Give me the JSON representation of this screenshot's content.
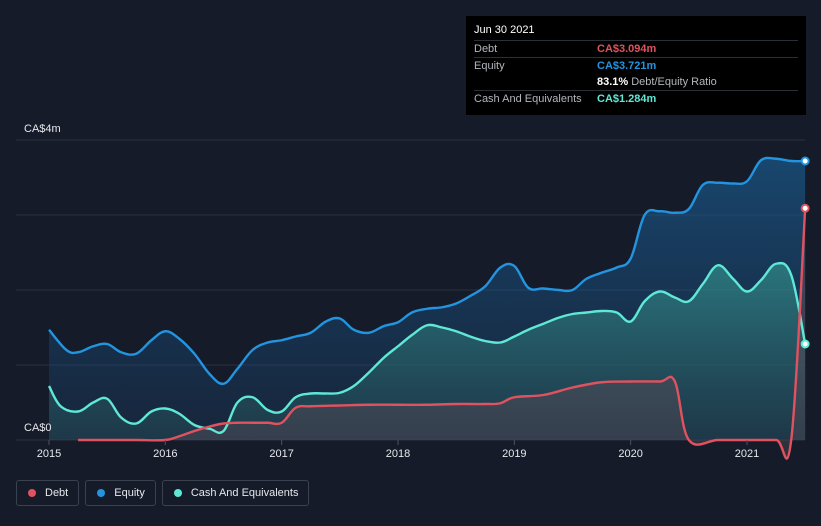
{
  "tooltip": {
    "date": "Jun 30 2021",
    "debt_label": "Debt",
    "debt_value": "CA$3.094m",
    "equity_label": "Equity",
    "equity_value": "CA$3.721m",
    "ratio_value": "83.1%",
    "ratio_label": "Debt/Equity Ratio",
    "cash_label": "Cash And Equivalents",
    "cash_value": "CA$1.284m"
  },
  "colors": {
    "debt": "#e0525f",
    "equity": "#2394df",
    "cash": "#5fe8d5",
    "background": "#151b28"
  },
  "legend": [
    {
      "name": "debt",
      "label": "Debt",
      "color": "#e0525f"
    },
    {
      "name": "equity",
      "label": "Equity",
      "color": "#2394df"
    },
    {
      "name": "cash",
      "label": "Cash And Equivalents",
      "color": "#5fe8d5"
    }
  ],
  "chart_data": {
    "type": "area",
    "ylim": [
      0,
      4
    ],
    "unit": "CA$m",
    "y_tick_labels": [
      "CA$4m",
      "CA$0"
    ],
    "x_tick_labels": [
      "2015",
      "2016",
      "2017",
      "2018",
      "2019",
      "2020",
      "2021"
    ],
    "xlim": [
      2015.0,
      2021.5
    ],
    "grid": true,
    "legend_position": "bottom-left",
    "series": [
      {
        "name": "Equity",
        "x": [
          2015.0,
          2015.15,
          2015.25,
          2015.38,
          2015.5,
          2015.62,
          2015.75,
          2015.88,
          2016.0,
          2016.12,
          2016.25,
          2016.38,
          2016.5,
          2016.62,
          2016.75,
          2016.88,
          2017.0,
          2017.12,
          2017.25,
          2017.38,
          2017.5,
          2017.62,
          2017.75,
          2017.88,
          2018.0,
          2018.12,
          2018.25,
          2018.38,
          2018.5,
          2018.62,
          2018.75,
          2018.88,
          2019.0,
          2019.12,
          2019.25,
          2019.38,
          2019.5,
          2019.62,
          2019.75,
          2019.88,
          2020.0,
          2020.12,
          2020.25,
          2020.38,
          2020.5,
          2020.62,
          2020.75,
          2020.88,
          2021.0,
          2021.12,
          2021.25,
          2021.38,
          2021.5
        ],
        "values": [
          1.47,
          1.2,
          1.17,
          1.25,
          1.28,
          1.17,
          1.15,
          1.33,
          1.45,
          1.35,
          1.15,
          0.88,
          0.75,
          0.95,
          1.2,
          1.3,
          1.33,
          1.38,
          1.43,
          1.58,
          1.62,
          1.47,
          1.43,
          1.52,
          1.57,
          1.7,
          1.75,
          1.77,
          1.82,
          1.92,
          2.05,
          2.3,
          2.32,
          2.03,
          2.02,
          2.0,
          2.0,
          2.15,
          2.23,
          2.3,
          2.42,
          3.0,
          3.05,
          3.03,
          3.08,
          3.4,
          3.43,
          3.42,
          3.45,
          3.73,
          3.75,
          3.72,
          3.72
        ]
      },
      {
        "name": "Cash And Equivalents",
        "x": [
          2015.0,
          2015.1,
          2015.25,
          2015.38,
          2015.5,
          2015.62,
          2015.75,
          2015.88,
          2016.0,
          2016.12,
          2016.25,
          2016.38,
          2016.5,
          2016.62,
          2016.75,
          2016.88,
          2017.0,
          2017.12,
          2017.25,
          2017.38,
          2017.5,
          2017.62,
          2017.75,
          2017.88,
          2018.0,
          2018.12,
          2018.25,
          2018.38,
          2018.5,
          2018.62,
          2018.75,
          2018.88,
          2019.0,
          2019.12,
          2019.25,
          2019.38,
          2019.5,
          2019.62,
          2019.75,
          2019.88,
          2020.0,
          2020.12,
          2020.25,
          2020.38,
          2020.5,
          2020.62,
          2020.75,
          2020.88,
          2021.0,
          2021.12,
          2021.25,
          2021.38,
          2021.5
        ],
        "values": [
          0.72,
          0.45,
          0.38,
          0.5,
          0.55,
          0.3,
          0.22,
          0.38,
          0.42,
          0.35,
          0.2,
          0.15,
          0.12,
          0.5,
          0.57,
          0.4,
          0.38,
          0.57,
          0.62,
          0.62,
          0.63,
          0.72,
          0.9,
          1.1,
          1.25,
          1.4,
          1.53,
          1.5,
          1.45,
          1.38,
          1.32,
          1.3,
          1.38,
          1.47,
          1.55,
          1.63,
          1.68,
          1.7,
          1.72,
          1.7,
          1.58,
          1.85,
          1.98,
          1.9,
          1.85,
          2.08,
          2.33,
          2.15,
          1.98,
          2.13,
          2.35,
          2.2,
          1.28
        ]
      },
      {
        "name": "Debt",
        "x": [
          2015.0,
          2015.25,
          2015.5,
          2015.75,
          2016.0,
          2016.12,
          2016.25,
          2016.38,
          2016.5,
          2016.62,
          2016.75,
          2016.88,
          2017.0,
          2017.12,
          2017.25,
          2017.5,
          2017.75,
          2018.0,
          2018.25,
          2018.5,
          2018.75,
          2018.88,
          2019.0,
          2019.25,
          2019.5,
          2019.75,
          2020.0,
          2020.25,
          2020.38,
          2020.5,
          2020.75,
          2021.0,
          2021.25,
          2021.38,
          2021.5
        ],
        "values": [
          null,
          0.0,
          0.0,
          0.0,
          0.0,
          0.05,
          0.12,
          0.18,
          0.22,
          0.23,
          0.23,
          0.23,
          0.23,
          0.43,
          0.45,
          0.46,
          0.47,
          0.47,
          0.47,
          0.48,
          0.48,
          0.49,
          0.57,
          0.6,
          0.7,
          0.77,
          0.78,
          0.78,
          0.78,
          0.0,
          0.0,
          0.0,
          0.0,
          0.0,
          3.09
        ]
      }
    ]
  }
}
